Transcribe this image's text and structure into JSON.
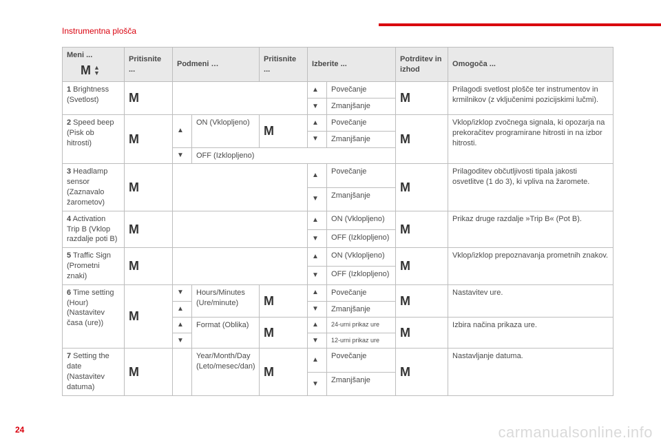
{
  "section_title": "Instrumentna plošča",
  "page_number": "24",
  "watermark": "carmanualsonline.info",
  "glyphs": {
    "M": "M",
    "up": "▲",
    "down": "▼"
  },
  "header": {
    "menu": "Meni ...",
    "press1": "Pritisnite ...",
    "submenu": "Podmeni …",
    "press2": "Pritisnite ...",
    "select": "Izberite ...",
    "confirm": "Potrditev in izhod",
    "enables": "Omogoča ..."
  },
  "rows": {
    "r1": {
      "num": "1",
      "label": " Brightness (Svetlost)",
      "sel_up": "Povečanje",
      "sel_down": "Zmanjšanje",
      "desc": "Prilagodi svetlost plošče ter instrumentov in krmilnikov (z vključenimi pozicijskimi lučmi)."
    },
    "r2": {
      "num": "2",
      "label": " Speed beep (Pisk ob hitrosti)",
      "sub_on": "ON (Vklopljeno)",
      "sub_off": "OFF (Izklopljeno)",
      "sel_up": "Povečanje",
      "sel_down": "Zmanjšanje",
      "desc": "Vklop/izklop zvočnega signala, ki opozarja na prekoračitev programirane hitrosti in na izbor hitrosti."
    },
    "r3": {
      "num": "3",
      "label": " Headlamp sensor (Zaznavalo žarometov)",
      "sel_up": "Povečanje",
      "sel_down": "Zmanjšanje",
      "desc": "Prilagoditev občutljivosti tipala jakosti osvetlitve (1 do 3), ki vpliva na žaromete."
    },
    "r4": {
      "num": "4",
      "label": " Activation Trip B (Vklop razdalje poti B)",
      "sel_on": "ON (Vklopljeno)",
      "sel_off": "OFF (Izklopljeno)",
      "desc": "Prikaz druge razdalje »Trip B« (Pot B)."
    },
    "r5": {
      "num": "5",
      "label": " Traffic Sign (Prometni znaki)",
      "sel_on": "ON (Vklopljeno)",
      "sel_off": "OFF (Izklopljeno)",
      "desc": "Vklop/izklop prepoznavanja prometnih znakov."
    },
    "r6": {
      "num": "6",
      "label": " Time setting (Hour) (Nastavitev časa (ure))",
      "sub_hm": "Hours/Minutes (Ure/minute)",
      "sub_fmt": "Format (Oblika)",
      "sel_up": "Povečanje",
      "sel_down": "Zmanjšanje",
      "sel_24": "24-urni prikaz ure",
      "sel_12": "12-urni prikaz ure",
      "desc1": "Nastavitev ure.",
      "desc2": "Izbira načina prikaza ure."
    },
    "r7": {
      "num": "7",
      "label": " Setting the date (Nastavitev datuma)",
      "sub_ymd": "Year/Month/Day (Leto/mesec/dan)",
      "sel_up": "Povečanje",
      "sel_down": "Zmanjšanje",
      "desc": "Nastavljanje datuma."
    }
  }
}
